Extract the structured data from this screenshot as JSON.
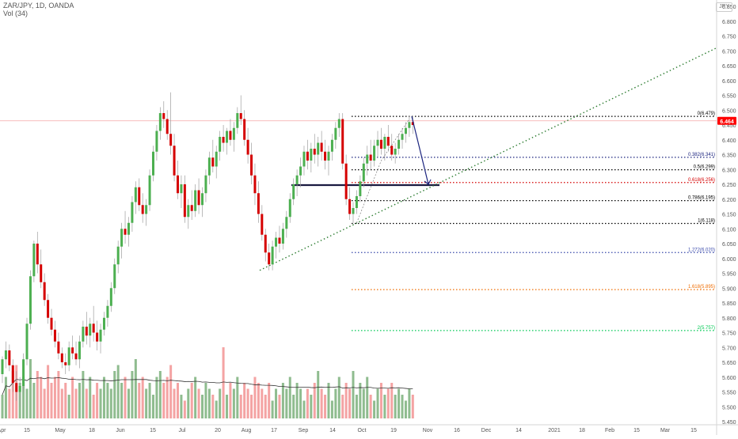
{
  "header": {
    "title": "ZAR/JPY, 1D, OANDA",
    "volume_label": "Vol (34)",
    "currency_badge": "JPY"
  },
  "chart_data": {
    "type": "candlestick",
    "symbol": "ZAR/JPY",
    "timeframe": "1D",
    "y_ticks": [
      "6.850",
      "6.800",
      "6.750",
      "6.700",
      "6.650",
      "6.600",
      "6.550",
      "6.500",
      "6.450",
      "6.400",
      "6.350",
      "6.300",
      "6.250",
      "6.200",
      "6.150",
      "6.100",
      "6.050",
      "6.000",
      "5.950",
      "5.900",
      "5.850",
      "5.800",
      "5.750",
      "5.700",
      "5.650",
      "5.600",
      "5.550",
      "5.500",
      "5.450"
    ],
    "x_ticks": [
      "Apr",
      "15",
      "May",
      "18",
      "Jun",
      "15",
      "Jul",
      "20",
      "Aug",
      "17",
      "Sep",
      "14",
      "Oct",
      "19",
      "Nov",
      "16",
      "Dec",
      "14",
      "2021",
      "18",
      "Feb",
      "15",
      "Mar",
      "15"
    ],
    "ylim": [
      5.45,
      6.85
    ],
    "last_price": "6.464",
    "last_price_color": "#ff0000",
    "up_color": "#26a69a",
    "candle_up_color": "#4caf50",
    "candle_down_color": "#d50000",
    "fib_levels": [
      {
        "label": "0(6.479)",
        "value": 6.479,
        "color": "#000000"
      },
      {
        "label": "0.382(6.341)",
        "value": 6.341,
        "color": "#1a237e"
      },
      {
        "label": "0.5(6.299)",
        "value": 6.299,
        "color": "#000000"
      },
      {
        "label": "0.618(6.256)",
        "value": 6.256,
        "color": "#d50000"
      },
      {
        "label": "0.786(6.195)",
        "value": 6.195,
        "color": "#000000"
      },
      {
        "label": "1(6.118)",
        "value": 6.118,
        "color": "#000000"
      },
      {
        "label": "1.272(6.020)",
        "value": 6.02,
        "color": "#3949ab"
      },
      {
        "label": "1.618(5.895)",
        "value": 5.895,
        "color": "#ef6c00"
      },
      {
        "label": "2(5.757)",
        "value": 5.757,
        "color": "#00c853"
      }
    ],
    "support_level": 6.25,
    "trendline": {
      "start": [
        "Aug 10",
        5.96
      ],
      "through": [
        "Sep 28",
        6.12
      ],
      "color": "#2e7d32"
    },
    "projection_arrow": {
      "from": [
        "Oct 20",
        6.479
      ],
      "to": [
        "Oct 26",
        6.25
      ],
      "color": "#1a237e"
    },
    "candles_ohlc": [
      [
        5.61,
        5.67,
        5.58,
        5.66
      ],
      [
        5.66,
        5.72,
        5.63,
        5.69
      ],
      [
        5.69,
        5.71,
        5.62,
        5.64
      ],
      [
        5.64,
        5.66,
        5.55,
        5.58
      ],
      [
        5.58,
        5.62,
        5.52,
        5.55
      ],
      [
        5.55,
        5.6,
        5.5,
        5.57
      ],
      [
        5.57,
        5.68,
        5.55,
        5.66
      ],
      [
        5.66,
        5.8,
        5.64,
        5.78
      ],
      [
        5.78,
        5.96,
        5.76,
        5.94
      ],
      [
        5.94,
        6.06,
        5.92,
        6.05
      ],
      [
        6.05,
        6.09,
        5.95,
        5.98
      ],
      [
        5.98,
        6.03,
        5.9,
        5.92
      ],
      [
        5.92,
        5.95,
        5.84,
        5.86
      ],
      [
        5.86,
        5.88,
        5.78,
        5.8
      ],
      [
        5.8,
        5.83,
        5.74,
        5.76
      ],
      [
        5.76,
        5.79,
        5.7,
        5.72
      ],
      [
        5.72,
        5.75,
        5.66,
        5.68
      ],
      [
        5.68,
        5.7,
        5.63,
        5.65
      ],
      [
        5.65,
        5.68,
        5.61,
        5.64
      ],
      [
        5.64,
        5.72,
        5.62,
        5.7
      ],
      [
        5.7,
        5.74,
        5.66,
        5.68
      ],
      [
        5.68,
        5.72,
        5.64,
        5.66
      ],
      [
        5.66,
        5.74,
        5.63,
        5.72
      ],
      [
        5.72,
        5.79,
        5.7,
        5.77
      ],
      [
        5.77,
        5.82,
        5.71,
        5.74
      ],
      [
        5.74,
        5.8,
        5.7,
        5.78
      ],
      [
        5.78,
        5.84,
        5.72,
        5.75
      ],
      [
        5.75,
        5.79,
        5.69,
        5.72
      ],
      [
        5.72,
        5.78,
        5.68,
        5.76
      ],
      [
        5.76,
        5.82,
        5.74,
        5.8
      ],
      [
        5.8,
        5.86,
        5.77,
        5.84
      ],
      [
        5.84,
        5.92,
        5.82,
        5.9
      ],
      [
        5.9,
        6.0,
        5.88,
        5.98
      ],
      [
        5.98,
        6.06,
        5.95,
        6.04
      ],
      [
        6.04,
        6.12,
        6.0,
        6.1
      ],
      [
        6.1,
        6.16,
        6.05,
        6.08
      ],
      [
        6.08,
        6.14,
        6.04,
        6.12
      ],
      [
        6.12,
        6.21,
        6.09,
        6.19
      ],
      [
        6.19,
        6.26,
        6.15,
        6.24
      ],
      [
        6.24,
        6.27,
        6.16,
        6.18
      ],
      [
        6.18,
        6.22,
        6.12,
        6.15
      ],
      [
        6.15,
        6.2,
        6.11,
        6.18
      ],
      [
        6.18,
        6.3,
        6.16,
        6.28
      ],
      [
        6.28,
        6.38,
        6.26,
        6.36
      ],
      [
        6.36,
        6.45,
        6.33,
        6.43
      ],
      [
        6.43,
        6.51,
        6.4,
        6.49
      ],
      [
        6.49,
        6.53,
        6.44,
        6.47
      ],
      [
        6.47,
        6.5,
        6.4,
        6.42
      ],
      [
        6.42,
        6.56,
        6.35,
        6.38
      ],
      [
        6.38,
        6.42,
        6.26,
        6.28
      ],
      [
        6.28,
        6.33,
        6.2,
        6.22
      ],
      [
        6.22,
        6.28,
        6.17,
        6.25
      ],
      [
        6.25,
        6.28,
        6.12,
        6.14
      ],
      [
        6.14,
        6.2,
        6.1,
        6.18
      ],
      [
        6.18,
        6.23,
        6.13,
        6.16
      ],
      [
        6.16,
        6.25,
        6.14,
        6.23
      ],
      [
        6.23,
        6.27,
        6.15,
        6.18
      ],
      [
        6.18,
        6.24,
        6.14,
        6.22
      ],
      [
        6.22,
        6.3,
        6.19,
        6.28
      ],
      [
        6.28,
        6.36,
        6.25,
        6.34
      ],
      [
        6.34,
        6.4,
        6.29,
        6.31
      ],
      [
        6.31,
        6.38,
        6.27,
        6.36
      ],
      [
        6.36,
        6.43,
        6.33,
        6.41
      ],
      [
        6.41,
        6.45,
        6.36,
        6.39
      ],
      [
        6.39,
        6.44,
        6.35,
        6.43
      ],
      [
        6.43,
        6.47,
        6.38,
        6.4
      ],
      [
        6.4,
        6.46,
        6.36,
        6.44
      ],
      [
        6.44,
        6.51,
        6.42,
        6.49
      ],
      [
        6.49,
        6.55,
        6.45,
        6.47
      ],
      [
        6.47,
        6.5,
        6.38,
        6.4
      ],
      [
        6.4,
        6.44,
        6.32,
        6.35
      ],
      [
        6.35,
        6.39,
        6.25,
        6.28
      ],
      [
        6.28,
        6.32,
        6.18,
        6.22
      ],
      [
        6.22,
        6.26,
        6.12,
        6.15
      ],
      [
        6.15,
        6.18,
        6.06,
        6.08
      ],
      [
        6.08,
        6.1,
        5.99,
        6.02
      ],
      [
        6.02,
        6.05,
        5.96,
        5.98
      ],
      [
        5.98,
        6.06,
        5.96,
        6.04
      ],
      [
        6.04,
        6.09,
        6.0,
        6.07
      ],
      [
        6.07,
        6.11,
        6.02,
        6.05
      ],
      [
        6.05,
        6.12,
        6.03,
        6.1
      ],
      [
        6.1,
        6.16,
        6.07,
        6.14
      ],
      [
        6.14,
        6.22,
        6.12,
        6.2
      ],
      [
        6.2,
        6.27,
        6.18,
        6.25
      ],
      [
        6.25,
        6.3,
        6.21,
        6.28
      ],
      [
        6.28,
        6.34,
        6.24,
        6.31
      ],
      [
        6.31,
        6.38,
        6.28,
        6.36
      ],
      [
        6.36,
        6.4,
        6.3,
        6.33
      ],
      [
        6.33,
        6.39,
        6.29,
        6.37
      ],
      [
        6.37,
        6.42,
        6.32,
        6.35
      ],
      [
        6.35,
        6.41,
        6.31,
        6.39
      ],
      [
        6.39,
        6.43,
        6.33,
        6.36
      ],
      [
        6.36,
        6.4,
        6.3,
        6.33
      ],
      [
        6.33,
        6.38,
        6.28,
        6.36
      ],
      [
        6.36,
        6.42,
        6.33,
        6.4
      ],
      [
        6.4,
        6.46,
        6.37,
        6.44
      ],
      [
        6.44,
        6.49,
        6.41,
        6.47
      ],
      [
        6.47,
        6.49,
        6.3,
        6.32
      ],
      [
        6.32,
        6.35,
        6.18,
        6.2
      ],
      [
        6.2,
        6.24,
        6.13,
        6.15
      ],
      [
        6.15,
        6.19,
        6.12,
        6.17
      ],
      [
        6.17,
        6.23,
        6.15,
        6.21
      ],
      [
        6.21,
        6.28,
        6.19,
        6.26
      ],
      [
        6.26,
        6.34,
        6.24,
        6.32
      ],
      [
        6.32,
        6.38,
        6.28,
        6.35
      ],
      [
        6.35,
        6.4,
        6.3,
        6.33
      ],
      [
        6.33,
        6.4,
        6.31,
        6.38
      ],
      [
        6.38,
        6.43,
        6.34,
        6.4
      ],
      [
        6.4,
        6.44,
        6.35,
        6.37
      ],
      [
        6.37,
        6.42,
        6.33,
        6.41
      ],
      [
        6.41,
        6.45,
        6.36,
        6.38
      ],
      [
        6.38,
        6.42,
        6.33,
        6.35
      ],
      [
        6.35,
        6.39,
        6.32,
        6.37
      ],
      [
        6.37,
        6.42,
        6.35,
        6.4
      ],
      [
        6.4,
        6.44,
        6.37,
        6.42
      ],
      [
        6.42,
        6.46,
        6.39,
        6.44
      ],
      [
        6.44,
        6.48,
        6.41,
        6.46
      ],
      [
        6.46,
        6.48,
        6.42,
        6.45
      ]
    ],
    "volume_values": [
      4,
      7,
      5,
      8,
      9,
      6,
      7,
      5,
      10,
      6,
      8,
      7,
      5,
      9,
      6,
      7,
      8,
      5,
      6,
      4,
      7,
      5,
      6,
      8,
      5,
      7,
      4,
      6,
      5,
      7,
      6,
      5,
      8,
      9,
      6,
      7,
      5,
      8,
      10,
      6,
      7,
      5,
      6,
      4,
      7,
      8,
      6,
      7,
      9,
      5,
      6,
      4,
      3,
      5,
      6,
      7,
      5,
      4,
      6,
      5,
      4,
      3,
      5,
      12,
      4,
      6,
      5,
      7,
      4,
      6,
      5,
      4,
      7,
      6,
      5,
      4,
      6,
      3,
      5,
      4,
      6,
      5,
      7,
      4,
      6,
      5,
      3,
      5,
      4,
      6,
      8,
      5,
      4,
      6,
      3,
      5,
      7,
      4,
      6,
      5,
      8,
      4,
      6,
      5,
      7,
      4,
      3,
      5,
      6,
      4,
      5,
      6,
      4,
      5,
      4,
      3,
      5,
      4
    ],
    "volume_ma_label": "Vol (34)"
  }
}
